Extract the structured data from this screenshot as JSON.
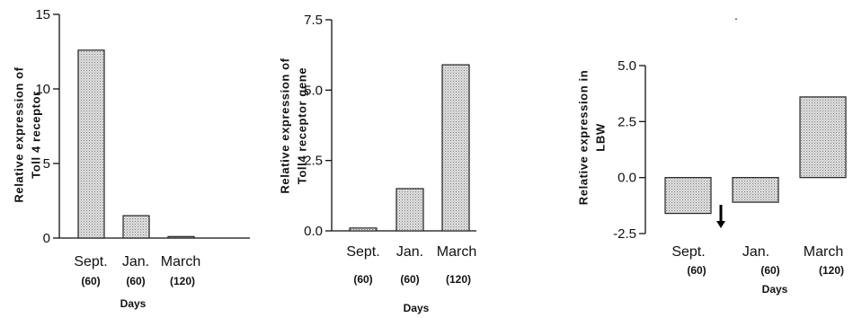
{
  "chart_data": [
    {
      "type": "bar",
      "ylabel": "Relative expression of Toll 4 receptor",
      "xlabel": "Days",
      "categories": [
        "Sept.",
        "Jan.",
        "March"
      ],
      "sublabels": [
        "(60)",
        "(60)",
        "(120)"
      ],
      "values": [
        12.6,
        1.5,
        0.1
      ],
      "ylim": [
        0,
        15
      ],
      "yticks": [
        0,
        5,
        10,
        15
      ],
      "ytick_labels": [
        "0",
        "5",
        "10",
        "15"
      ],
      "grid": false
    },
    {
      "type": "bar",
      "ylabel": "Relative expression of Toll4 receptor gene",
      "xlabel": "Days",
      "categories": [
        "Sept.",
        "Jan.",
        "March"
      ],
      "sublabels": [
        "(60)",
        "(60)",
        "(120)"
      ],
      "values": [
        0.1,
        1.5,
        5.9
      ],
      "ylim": [
        0,
        7.5
      ],
      "yticks": [
        0,
        2.5,
        5.0,
        7.5
      ],
      "ytick_labels": [
        "0.0",
        "2.5",
        "5.0",
        "7.5"
      ],
      "grid": false
    },
    {
      "type": "bar",
      "ylabel": "Relative expression in LBW",
      "xlabel": "Days",
      "categories": [
        "Sept.",
        "Jan.",
        "March"
      ],
      "sublabels": [
        "(60)",
        "(60)",
        "(120)"
      ],
      "values": [
        -1.6,
        -1.1,
        3.6
      ],
      "ylim": [
        -2.5,
        5.0
      ],
      "yticks": [
        -2.5,
        0,
        2.5,
        5.0
      ],
      "ytick_labels": [
        "-2.5",
        "0.0",
        "2.5",
        "5.0"
      ],
      "grid": false,
      "annotation": "down-arrow below Sept. bar"
    }
  ],
  "colors": {
    "bar_fill": "#d9d9d9",
    "bar_stroke": "#222222",
    "axis": "#111111"
  },
  "icons": {
    "annotation": "down-arrow-icon"
  }
}
